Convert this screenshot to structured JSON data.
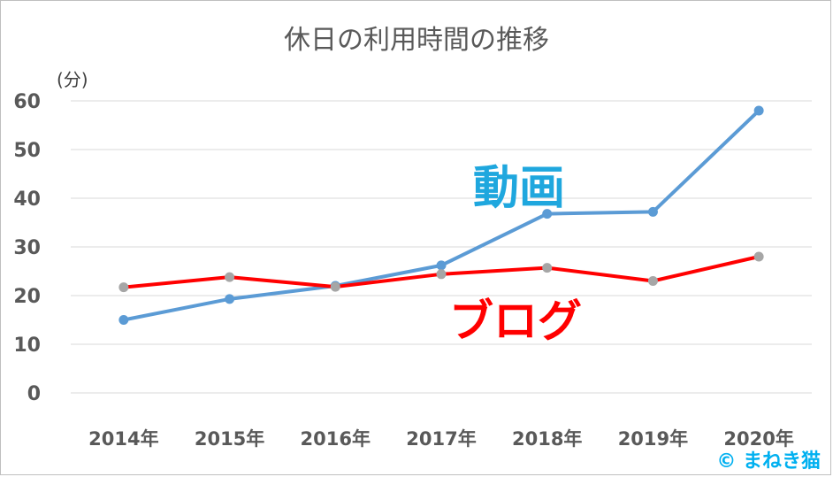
{
  "chart_data": {
    "type": "line",
    "title": "休日の利用時間の推移",
    "unit_label": "(分)",
    "categories": [
      "2014年",
      "2015年",
      "2016年",
      "2017年",
      "2018年",
      "2019年",
      "2020年"
    ],
    "ylim": [
      0,
      60
    ],
    "yticks": [
      "0",
      "10",
      "20",
      "30",
      "40",
      "50",
      "60"
    ],
    "grid": true,
    "series": [
      {
        "name": "動画",
        "color": "#5b9bd5",
        "label_color": "#1fa7de",
        "values": [
          15,
          19.3,
          22,
          26.2,
          36.8,
          37.2,
          58
        ]
      },
      {
        "name": "ブログ",
        "color": "#ff0000",
        "label_color": "#ff0000",
        "values": [
          21.7,
          23.8,
          21.8,
          24.4,
          25.7,
          23,
          28
        ]
      }
    ]
  },
  "credit": "© まねき猫"
}
